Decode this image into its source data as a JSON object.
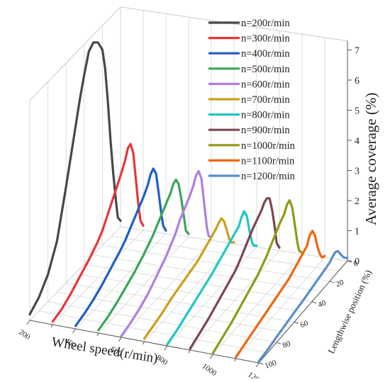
{
  "chart_data": {
    "type": "line",
    "title": "",
    "xlabel": "Wheel speed(r/min)",
    "ylabel": "Lengthwise position (%)",
    "zlabel": "Average coverage (%)",
    "x_ticks": [
      "200",
      "400",
      "600",
      "800",
      "1000",
      "1200"
    ],
    "y_ticks": [
      "0",
      "20",
      "40",
      "60",
      "80",
      "100"
    ],
    "z_ticks": [
      "0",
      "1",
      "2",
      "3",
      "4",
      "5",
      "6",
      "7"
    ],
    "zlim": [
      0,
      7.3
    ],
    "grid": true,
    "legend_position": "top-right",
    "position_profile": [
      100,
      90,
      80,
      70,
      60,
      50,
      45,
      40,
      35,
      30,
      25,
      20,
      17,
      14,
      11,
      8,
      5,
      3,
      0
    ],
    "series": [
      {
        "name": "n=200r/min",
        "wheel_speed": 200,
        "color": "#484848",
        "coverage": [
          0.2,
          0.45,
          0.9,
          1.7,
          3.2,
          4.8,
          5.6,
          6.3,
          6.9,
          7.05,
          6.9,
          6.5,
          5.8,
          4.6,
          3.2,
          2.0,
          1.0,
          0.4,
          0.2
        ]
      },
      {
        "name": "n=300r/min",
        "wheel_speed": 300,
        "color": "#e8363c",
        "coverage": [
          0.1,
          0.2,
          0.4,
          0.65,
          0.9,
          1.2,
          1.4,
          1.7,
          2.0,
          2.3,
          2.6,
          2.95,
          3.25,
          3.3,
          2.9,
          1.9,
          0.9,
          0.4,
          0.15
        ]
      },
      {
        "name": "n=400r/min",
        "wheel_speed": 400,
        "color": "#1f5fc4",
        "coverage": [
          0.1,
          0.2,
          0.35,
          0.55,
          0.8,
          1.05,
          1.2,
          1.4,
          1.6,
          1.8,
          2.0,
          2.25,
          2.5,
          2.6,
          2.35,
          1.6,
          0.8,
          0.35,
          0.1
        ]
      },
      {
        "name": "n=500r/min",
        "wheel_speed": 500,
        "color": "#3aa65a",
        "coverage": [
          0.1,
          0.2,
          0.35,
          0.55,
          0.75,
          1.0,
          1.15,
          1.3,
          1.5,
          1.7,
          1.9,
          2.1,
          2.3,
          2.35,
          2.1,
          1.5,
          0.8,
          0.3,
          0.1
        ]
      },
      {
        "name": "n=600r/min",
        "wheel_speed": 600,
        "color": "#b07ee0",
        "coverage": [
          0.05,
          0.15,
          0.3,
          0.5,
          0.8,
          1.1,
          1.3,
          1.5,
          1.8,
          2.0,
          2.2,
          2.45,
          2.7,
          2.75,
          2.4,
          1.5,
          0.6,
          0.25,
          0.1
        ]
      },
      {
        "name": "n=700r/min",
        "wheel_speed": 700,
        "color": "#c9a01a",
        "coverage": [
          0.1,
          0.2,
          0.3,
          0.45,
          0.55,
          0.65,
          0.7,
          0.75,
          0.85,
          0.95,
          1.05,
          1.15,
          1.25,
          1.3,
          1.1,
          0.7,
          0.3,
          0.15,
          0.05
        ]
      },
      {
        "name": "n=800r/min",
        "wheel_speed": 800,
        "color": "#1ec7c3",
        "coverage": [
          0.05,
          0.15,
          0.3,
          0.45,
          0.6,
          0.75,
          0.85,
          0.95,
          1.05,
          1.15,
          1.25,
          1.35,
          1.55,
          1.65,
          1.4,
          0.8,
          0.3,
          0.15,
          0.05
        ]
      },
      {
        "name": "n=900r/min",
        "wheel_speed": 900,
        "color": "#7b4650",
        "coverage": [
          0.05,
          0.2,
          0.35,
          0.55,
          0.75,
          0.95,
          1.1,
          1.3,
          1.5,
          1.7,
          1.85,
          2.0,
          2.15,
          2.2,
          2.1,
          1.6,
          0.9,
          0.35,
          0.1
        ]
      },
      {
        "name": "n=1000r/min",
        "wheel_speed": 1000,
        "color": "#8f9a16",
        "coverage": [
          0.05,
          0.2,
          0.35,
          0.55,
          0.75,
          0.95,
          1.1,
          1.25,
          1.45,
          1.65,
          1.85,
          2.0,
          2.2,
          2.25,
          1.9,
          1.2,
          0.5,
          0.2,
          0.05
        ]
      },
      {
        "name": "n=1100r/min",
        "wheel_speed": 1100,
        "color": "#f0660f",
        "coverage": [
          0.05,
          0.15,
          0.25,
          0.35,
          0.45,
          0.55,
          0.6,
          0.65,
          0.75,
          0.85,
          0.95,
          1.05,
          1.3,
          1.35,
          1.1,
          0.6,
          0.25,
          0.1,
          0.05
        ]
      },
      {
        "name": "n=1200r/min",
        "wheel_speed": 1200,
        "color": "#5b8ec8",
        "coverage": [
          0.05,
          0.1,
          0.18,
          0.25,
          0.32,
          0.38,
          0.42,
          0.46,
          0.5,
          0.54,
          0.58,
          0.62,
          0.7,
          0.75,
          0.7,
          0.5,
          0.3,
          0.2,
          0.1
        ]
      }
    ]
  }
}
